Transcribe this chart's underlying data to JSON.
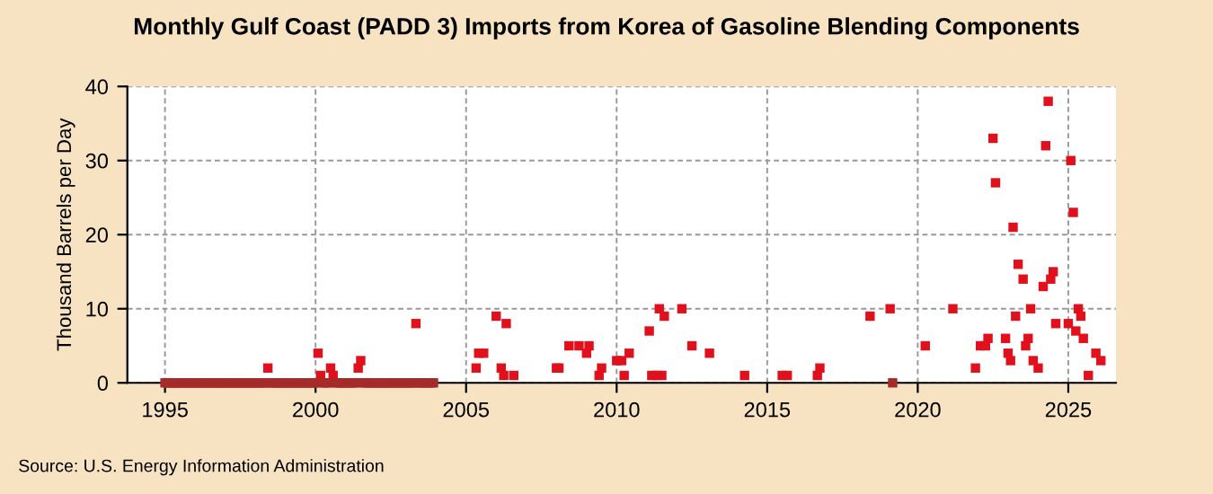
{
  "chart_data": {
    "type": "scatter",
    "title": "Monthly Gulf Coast (PADD 3) Imports from Korea of Gasoline Blending Components",
    "ylabel": "Thousand Barrels per Day",
    "annotations": [
      "Source: U.S. Energy Information Administration"
    ],
    "xlim": [
      "1993-10",
      "2026-08"
    ],
    "xticks": [
      "1995",
      "2000",
      "2005",
      "2010",
      "2015",
      "2020",
      "2025"
    ],
    "ylim": [
      0,
      40
    ],
    "yticks": [
      0,
      10,
      20,
      30,
      40
    ],
    "grid": true,
    "marker": "square",
    "legend": false,
    "series": [
      {
        "color": "#e0101c",
        "x": [
          "1998-06",
          "2000-02",
          "2000-03",
          "2000-07",
          "2000-08",
          "2001-06",
          "2001-07",
          "2003-05",
          "2005-05",
          "2005-06",
          "2005-08",
          "2006-01",
          "2006-03",
          "2006-04",
          "2006-05",
          "2006-08",
          "2008-01",
          "2008-02",
          "2008-06",
          "2008-10",
          "2009-01",
          "2009-02",
          "2009-06",
          "2009-07",
          "2010-01",
          "2010-03",
          "2010-04",
          "2010-06",
          "2011-02",
          "2011-03",
          "2011-05",
          "2011-06",
          "2011-07",
          "2011-08",
          "2012-03",
          "2012-07",
          "2013-02",
          "2014-04",
          "2015-07",
          "2015-09",
          "2016-09",
          "2016-10",
          "2018-06",
          "2019-02",
          "2020-04",
          "2021-03",
          "2021-12",
          "2022-02",
          "2022-04",
          "2022-05",
          "2022-07",
          "2022-08",
          "2022-12",
          "2023-01",
          "2023-02",
          "2023-03",
          "2023-04",
          "2023-05",
          "2023-07",
          "2023-08",
          "2023-09",
          "2023-10",
          "2023-11",
          "2024-01",
          "2024-03",
          "2024-04",
          "2024-05",
          "2024-06",
          "2024-07",
          "2024-08",
          "2025-01",
          "2025-02",
          "2025-03",
          "2025-04",
          "2025-05",
          "2025-06",
          "2025-07",
          "2025-09",
          "2025-12",
          "2026-02"
        ],
        "values": [
          2,
          4,
          1,
          2,
          1,
          2,
          3,
          8,
          2,
          4,
          4,
          9,
          2,
          1,
          8,
          1,
          2,
          2,
          5,
          5,
          4,
          5,
          1,
          2,
          3,
          3,
          1,
          4,
          7,
          1,
          1,
          10,
          1,
          9,
          10,
          5,
          4,
          1,
          1,
          1,
          1,
          2,
          9,
          10,
          5,
          10,
          2,
          5,
          5,
          6,
          33,
          27,
          6,
          4,
          3,
          21,
          9,
          16,
          14,
          5,
          6,
          10,
          3,
          2,
          13,
          32,
          38,
          14,
          15,
          8,
          8,
          30,
          23,
          7,
          10,
          9,
          6,
          1,
          4,
          3
        ]
      },
      {
        "color": "#a52a2a",
        "x": [
          "1995-01",
          "1995-02",
          "1995-03",
          "1995-04",
          "1995-05",
          "1995-06",
          "1995-07",
          "1995-08",
          "1995-09",
          "1995-10",
          "1995-11",
          "1995-12",
          "1996-01",
          "1996-02",
          "1996-03",
          "1996-04",
          "1996-05",
          "1996-06",
          "1996-07",
          "1996-08",
          "1996-09",
          "1996-10",
          "1996-11",
          "1996-12",
          "1997-01",
          "1997-02",
          "1997-03",
          "1997-04",
          "1997-05",
          "1997-06",
          "1997-07",
          "1997-08",
          "1997-09",
          "1997-10",
          "1997-11",
          "1997-12",
          "1998-01",
          "1998-02",
          "1998-03",
          "1998-04",
          "1998-05",
          "1998-07",
          "1998-08",
          "1998-09",
          "1998-10",
          "1998-11",
          "1998-12",
          "1999-01",
          "1999-02",
          "1999-03",
          "1999-04",
          "1999-05",
          "1999-06",
          "1999-07",
          "1999-08",
          "1999-09",
          "1999-10",
          "1999-11",
          "1999-12",
          "2000-01",
          "2000-04",
          "2000-05",
          "2000-06",
          "2000-09",
          "2000-10",
          "2000-11",
          "2000-12",
          "2001-01",
          "2001-02",
          "2001-03",
          "2001-04",
          "2001-05",
          "2001-08",
          "2001-09",
          "2001-10",
          "2001-11",
          "2001-12",
          "2002-01",
          "2002-02",
          "2002-03",
          "2002-04",
          "2002-05",
          "2002-06",
          "2002-07",
          "2002-08",
          "2002-09",
          "2002-10",
          "2002-11",
          "2002-12",
          "2003-01",
          "2003-02",
          "2003-03",
          "2003-04",
          "2003-06",
          "2003-07",
          "2003-08",
          "2003-09",
          "2003-10",
          "2003-11",
          "2003-12",
          "2019-03"
        ],
        "values": [
          0,
          0,
          0,
          0,
          0,
          0,
          0,
          0,
          0,
          0,
          0,
          0,
          0,
          0,
          0,
          0,
          0,
          0,
          0,
          0,
          0,
          0,
          0,
          0,
          0,
          0,
          0,
          0,
          0,
          0,
          0,
          0,
          0,
          0,
          0,
          0,
          0,
          0,
          0,
          0,
          0,
          0,
          0,
          0,
          0,
          0,
          0,
          0,
          0,
          0,
          0,
          0,
          0,
          0,
          0,
          0,
          0,
          0,
          0,
          0,
          0,
          0,
          0,
          0,
          0,
          0,
          0,
          0,
          0,
          0,
          0,
          0,
          0,
          0,
          0,
          0,
          0,
          0,
          0,
          0,
          0,
          0,
          0,
          0,
          0,
          0,
          0,
          0,
          0,
          0,
          0,
          0,
          0,
          0,
          0,
          0,
          0,
          0,
          0,
          0,
          0
        ]
      }
    ]
  }
}
